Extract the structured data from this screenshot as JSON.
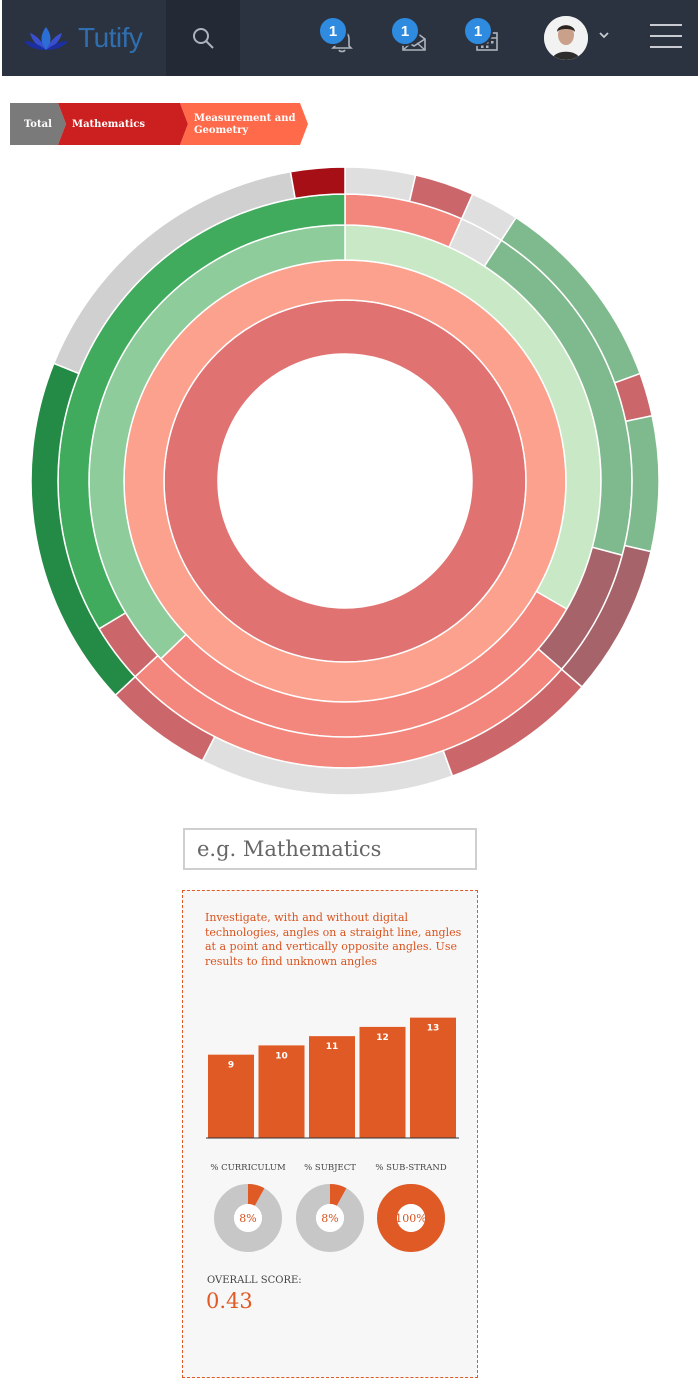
{
  "app": {
    "name": "Tutify",
    "icons": {
      "logo": "lotus-logo",
      "search": "search-icon",
      "menu": "hamburger-menu-icon"
    }
  },
  "nav": {
    "notifications": {
      "icon": "bell-icon",
      "badge": "1"
    },
    "messages": {
      "icon": "envelope-icon",
      "badge": "1"
    },
    "calendar": {
      "icon": "calendar-icon",
      "badge": "1"
    }
  },
  "breadcrumb": {
    "items": [
      {
        "label": "Total",
        "color": "#7a7a7a"
      },
      {
        "label": "Mathematics",
        "color": "#cc1f1f"
      },
      {
        "label": "Measurement and Geometry",
        "color": "#ff6a4a"
      }
    ]
  },
  "colors": {
    "accent": "#e05a25",
    "topbar": "#2b3340",
    "badge": "#2e8be0"
  },
  "search": {
    "placeholder": "e.g. Mathematics"
  },
  "detail": {
    "description": "Investigate, with and without digital technologies, angles on a straight line, angles at a point and vertically opposite angles. Use results to find unknown angles",
    "metrics": [
      {
        "label": "% CURRICULUM",
        "value_text": "8%",
        "value": 0.08
      },
      {
        "label": "% SUBJECT",
        "value_text": "8%",
        "value": 0.08
      },
      {
        "label": "% SUB-STRAND",
        "value_text": "100%",
        "value": 1.0
      }
    ],
    "overall_label": "OVERALL SCORE:",
    "overall_value": "0.43"
  },
  "chart_data": {
    "type": "bar",
    "categories": [
      "9",
      "10",
      "11",
      "12",
      "13"
    ],
    "values": [
      9,
      10,
      11,
      12,
      13
    ],
    "ylim": [
      0,
      13.5
    ],
    "color": "#e05a25"
  }
}
